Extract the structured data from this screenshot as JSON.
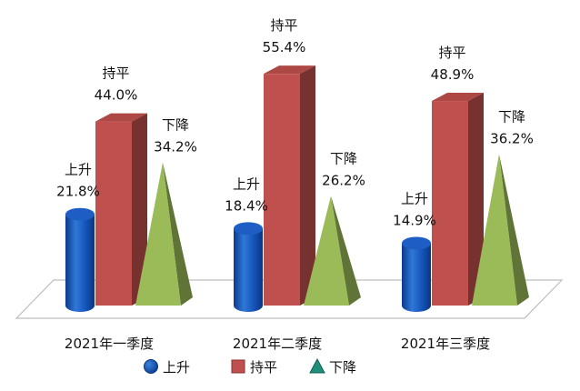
{
  "chart_data": {
    "type": "bar",
    "categories": [
      "2021年一季度",
      "2021年二季度",
      "2021年三季度"
    ],
    "series": [
      {
        "name": "上升",
        "shape": "cylinder",
        "color": "#1f5fbf",
        "values": [
          21.8,
          18.4,
          14.9
        ],
        "labels": [
          "21.8%",
          "18.4%",
          "14.9%"
        ]
      },
      {
        "name": "持平",
        "shape": "box",
        "color": "#c0504d",
        "values": [
          44.0,
          55.4,
          48.9
        ],
        "labels": [
          "44.0%",
          "55.4%",
          "48.9%"
        ]
      },
      {
        "name": "下降",
        "shape": "pyramid",
        "color": "#9bbb59",
        "values": [
          34.2,
          26.2,
          36.2
        ],
        "labels": [
          "34.2%",
          "26.2%",
          "36.2%"
        ]
      }
    ],
    "legend": {
      "position": "bottom"
    },
    "grid": false
  }
}
